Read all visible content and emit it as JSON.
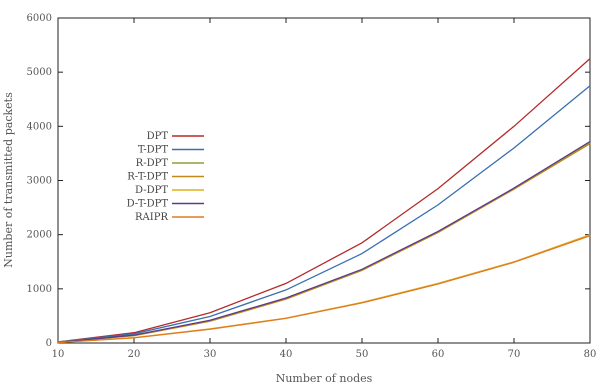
{
  "chart_data": {
    "type": "line",
    "title": "",
    "xlabel": "Number of nodes",
    "ylabel": "Number of transmitted packets",
    "xlim": [
      10,
      80
    ],
    "ylim": [
      0,
      6000
    ],
    "xticks": [
      10,
      20,
      30,
      40,
      50,
      60,
      70,
      80
    ],
    "yticks": [
      0,
      1000,
      2000,
      3000,
      4000,
      5000,
      6000
    ],
    "grid": false,
    "legend_position": "center-left",
    "x": [
      10,
      20,
      30,
      40,
      50,
      60,
      70,
      80
    ],
    "series": [
      {
        "name": "DPT",
        "color": "#b52a2a",
        "values": [
          20,
          190,
          560,
          1100,
          1850,
          2850,
          4000,
          5250
        ]
      },
      {
        "name": "T-DPT",
        "color": "#3a6fb0",
        "values": [
          18,
          170,
          490,
          980,
          1650,
          2550,
          3600,
          4750
        ]
      },
      {
        "name": "R-DPT",
        "color": "#8aa13a",
        "values": [
          15,
          140,
          410,
          820,
          1350,
          2050,
          2850,
          3700
        ]
      },
      {
        "name": "R-T-DPT",
        "color": "#c08a1a",
        "values": [
          14,
          135,
          400,
          810,
          1340,
          2040,
          2840,
          3680
        ]
      },
      {
        "name": "D-DPT",
        "color": "#e0b020",
        "values": [
          10,
          100,
          260,
          460,
          750,
          1100,
          1500,
          2000
        ]
      },
      {
        "name": "D-T-DPT",
        "color": "#5a3a8a",
        "values": [
          12,
          145,
          420,
          830,
          1360,
          2060,
          2860,
          3720
        ]
      },
      {
        "name": "RAIPR",
        "color": "#e07a20",
        "values": [
          9,
          95,
          255,
          455,
          740,
          1090,
          1490,
          1980
        ]
      }
    ]
  }
}
